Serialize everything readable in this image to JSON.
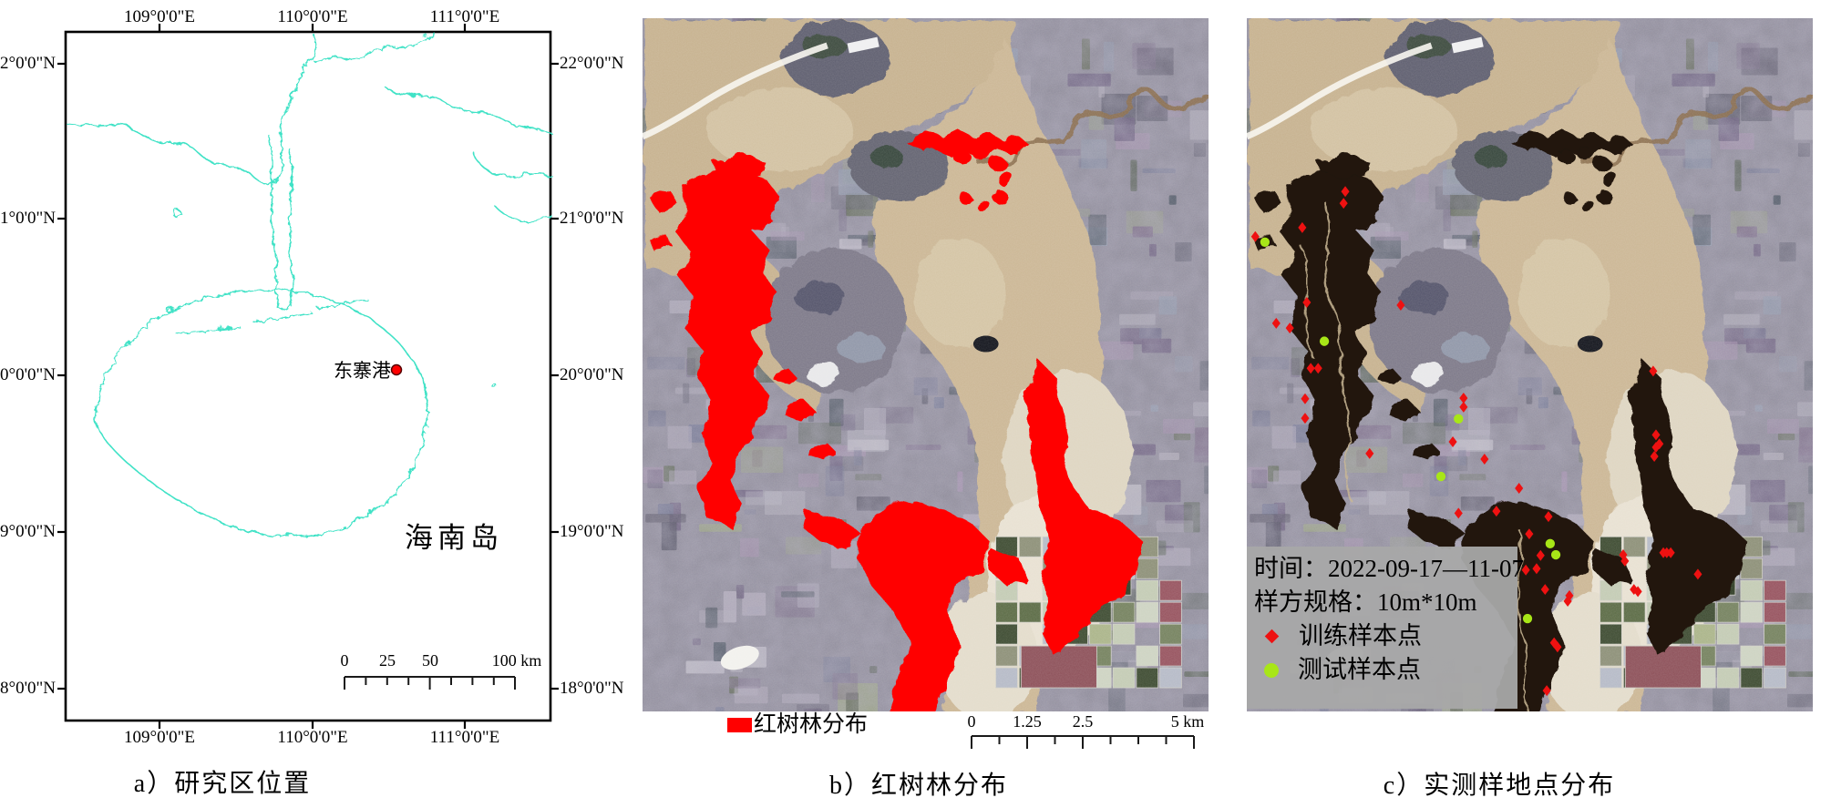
{
  "figure": {
    "captions": {
      "a": "a）研究区位置",
      "b": "b）红树林分布",
      "c": "c）实测样地点分布"
    }
  },
  "panel_a": {
    "lon_labels": [
      "109°0'0\"E",
      "110°0'0\"E",
      "111°0'0\"E"
    ],
    "lat_labels": [
      "22°0'0\"N",
      "21°0'0\"N",
      "20°0'0\"N",
      "19°0'0\"N",
      "18°0'0\"N"
    ],
    "place_labels": {
      "harbor": "东寨港",
      "island": "海南岛"
    },
    "scalebar": {
      "t0": "0",
      "t25": "25",
      "t50": "50",
      "t100": "100 km"
    },
    "coast_color": "#3fe2c6",
    "marker_color": "#ff0000"
  },
  "panel_b": {
    "legend": {
      "label": "红树林分布",
      "swatch_color": "#ff0000"
    },
    "scalebar": {
      "t0": "0",
      "t125": "1.25",
      "t25": "2.5",
      "t5": "5 km"
    }
  },
  "panel_c": {
    "legend": {
      "line_time": "时间：2022-09-17—11-07",
      "line_quadrat": "样方规格：10m*10m",
      "train_label": "训练样本点",
      "test_label": "测试样本点",
      "train_color": "#ee1111",
      "test_color": "#a8e617",
      "box_color": "#a8a8a8"
    },
    "mangrove_color": "#20150d",
    "train_points_pct": [
      [
        17.4,
        25.0
      ],
      [
        17.1,
        26.7
      ],
      [
        9.8,
        30.2
      ],
      [
        1.5,
        31.5
      ],
      [
        10.6,
        41.0
      ],
      [
        5.2,
        44.0
      ],
      [
        7.6,
        44.7
      ],
      [
        11.3,
        50.5
      ],
      [
        12.6,
        50.5
      ],
      [
        10.3,
        54.9
      ],
      [
        10.3,
        57.7
      ],
      [
        27.2,
        41.4
      ],
      [
        38.3,
        54.8
      ],
      [
        38.3,
        56.1
      ],
      [
        21.7,
        62.8
      ],
      [
        36.4,
        61.1
      ],
      [
        42.0,
        63.6
      ],
      [
        48.1,
        67.8
      ],
      [
        37.4,
        71.4
      ],
      [
        44.1,
        71.1
      ],
      [
        53.3,
        71.9
      ],
      [
        49.9,
        74.4
      ],
      [
        51.9,
        77.5
      ],
      [
        51.2,
        79.4
      ],
      [
        49.3,
        79.6
      ],
      [
        52.7,
        82.4
      ],
      [
        57.0,
        83.3
      ],
      [
        56.7,
        84.1
      ],
      [
        54.3,
        90.1
      ],
      [
        54.9,
        90.7
      ],
      [
        53.0,
        97.0
      ],
      [
        66.5,
        77.4
      ],
      [
        66.8,
        78.3
      ],
      [
        68.4,
        82.4
      ],
      [
        69.1,
        82.7
      ],
      [
        73.6,
        77.1
      ],
      [
        74.2,
        77.1
      ],
      [
        74.9,
        77.1
      ],
      [
        79.7,
        80.2
      ],
      [
        71.8,
        50.9
      ],
      [
        72.3,
        60.1
      ],
      [
        72.9,
        61.4
      ],
      [
        72.3,
        61.9
      ],
      [
        72.0,
        63.2
      ]
    ],
    "test_points_pct": [
      [
        3.2,
        32.3
      ],
      [
        13.7,
        46.6
      ],
      [
        37.4,
        57.8
      ],
      [
        34.3,
        66.1
      ],
      [
        53.6,
        75.8
      ],
      [
        54.6,
        77.4
      ],
      [
        49.6,
        86.6
      ]
    ]
  }
}
